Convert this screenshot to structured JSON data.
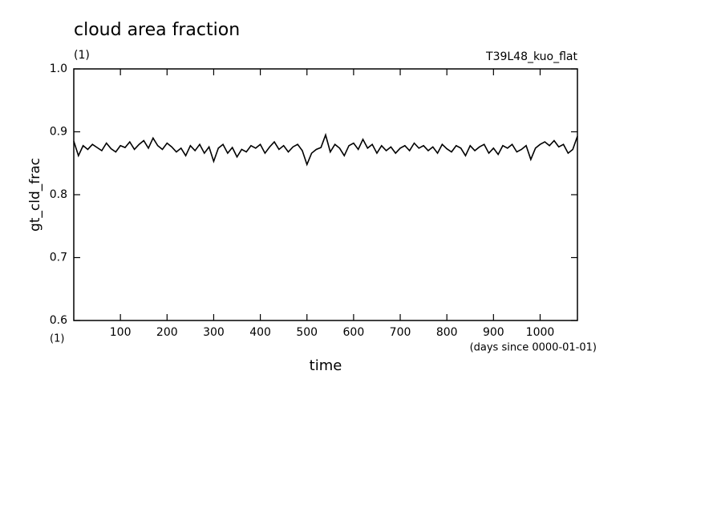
{
  "chart_data": {
    "type": "line",
    "title": "cloud area fraction",
    "subtitle": "(1)",
    "annotation": "T39L48_kuo_flat",
    "ylabel": "gt_cld_frac",
    "xlabel": "time",
    "xunits": "(days since 0000-01-01)",
    "yunits": "(1)",
    "color": "#000000",
    "x": [
      0,
      10,
      20,
      30,
      40,
      50,
      60,
      70,
      80,
      90,
      100,
      110,
      120,
      130,
      140,
      150,
      160,
      170,
      180,
      190,
      200,
      210,
      220,
      230,
      240,
      250,
      260,
      270,
      280,
      290,
      300,
      310,
      320,
      330,
      340,
      350,
      360,
      370,
      380,
      390,
      400,
      410,
      420,
      430,
      440,
      450,
      460,
      470,
      480,
      490,
      500,
      510,
      520,
      530,
      540,
      550,
      560,
      570,
      580,
      590,
      600,
      610,
      620,
      630,
      640,
      650,
      660,
      670,
      680,
      690,
      700,
      710,
      720,
      730,
      740,
      750,
      760,
      770,
      780,
      790,
      800,
      810,
      820,
      830,
      840,
      850,
      860,
      870,
      880,
      890,
      900,
      910,
      920,
      930,
      940,
      950,
      960,
      970,
      980,
      990,
      1000,
      1010,
      1020,
      1030,
      1040,
      1050,
      1060,
      1070,
      1080
    ],
    "values": [
      0.885,
      0.862,
      0.878,
      0.872,
      0.88,
      0.875,
      0.87,
      0.882,
      0.873,
      0.868,
      0.878,
      0.875,
      0.884,
      0.872,
      0.88,
      0.886,
      0.874,
      0.89,
      0.878,
      0.872,
      0.882,
      0.876,
      0.868,
      0.874,
      0.862,
      0.878,
      0.87,
      0.88,
      0.866,
      0.876,
      0.853,
      0.874,
      0.88,
      0.866,
      0.875,
      0.86,
      0.872,
      0.868,
      0.878,
      0.874,
      0.88,
      0.866,
      0.876,
      0.884,
      0.872,
      0.878,
      0.868,
      0.876,
      0.88,
      0.87,
      0.848,
      0.866,
      0.872,
      0.875,
      0.895,
      0.868,
      0.88,
      0.874,
      0.862,
      0.878,
      0.882,
      0.872,
      0.888,
      0.874,
      0.88,
      0.866,
      0.878,
      0.87,
      0.876,
      0.866,
      0.874,
      0.878,
      0.87,
      0.882,
      0.874,
      0.878,
      0.87,
      0.876,
      0.866,
      0.88,
      0.873,
      0.868,
      0.878,
      0.874,
      0.862,
      0.878,
      0.87,
      0.876,
      0.88,
      0.866,
      0.874,
      0.864,
      0.878,
      0.874,
      0.88,
      0.868,
      0.872,
      0.878,
      0.856,
      0.874,
      0.88,
      0.884,
      0.878,
      0.886,
      0.876,
      0.88,
      0.866,
      0.872,
      0.893
    ],
    "xlim": [
      0,
      1080
    ],
    "xticks": [
      100,
      200,
      300,
      400,
      500,
      600,
      700,
      800,
      900,
      1000
    ],
    "ylim": [
      0.6,
      1.0
    ],
    "yticks": [
      0.6,
      0.7,
      0.8,
      0.9,
      {
        "value": 1.0,
        "label": "1.0"
      }
    ]
  }
}
